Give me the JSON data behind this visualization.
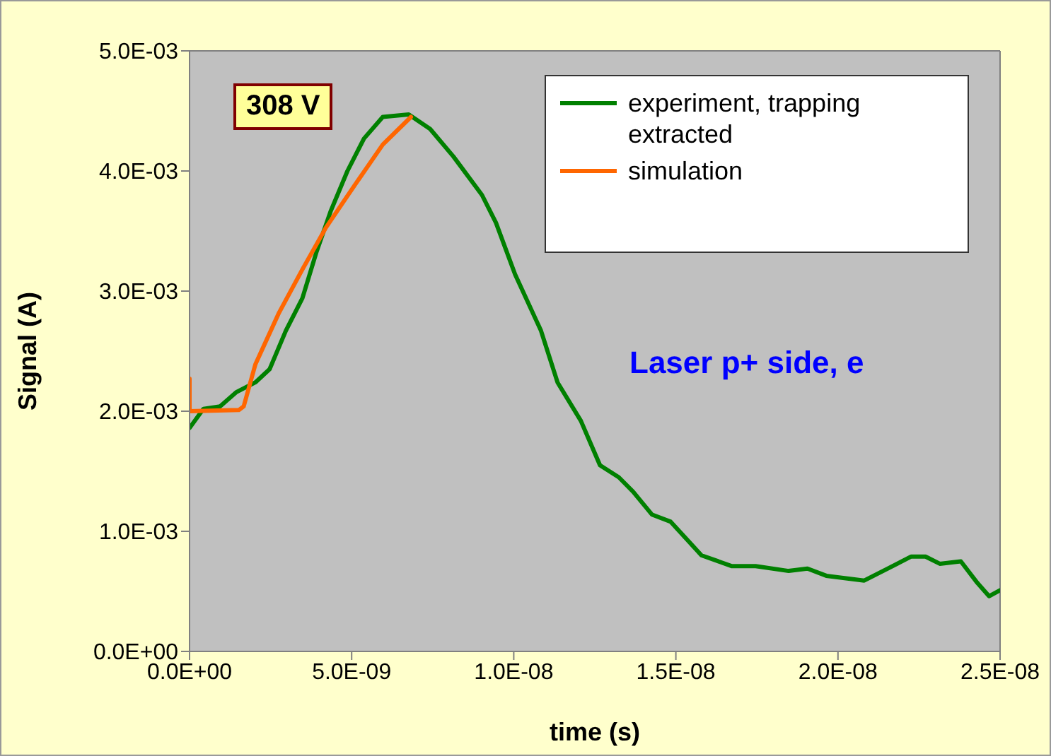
{
  "chart_data": {
    "type": "line",
    "xlabel": "time (s)",
    "ylabel": "Signal (A)",
    "xlim": [
      0,
      2.5e-08
    ],
    "xticks": [
      {
        "value": 0,
        "label": "0.0E+00"
      },
      {
        "value": 5e-09,
        "label": "5.0E-09"
      },
      {
        "value": 1e-08,
        "label": "1.0E-08"
      },
      {
        "value": 1.5e-08,
        "label": "1.5E-08"
      },
      {
        "value": 2e-08,
        "label": "2.0E-08"
      },
      {
        "value": 2.5e-08,
        "label": "2.5E-08"
      }
    ],
    "ylim": [
      0,
      0.005
    ],
    "yticks": [
      {
        "value": 0,
        "label": "0.0E+00"
      },
      {
        "value": 0.001,
        "label": "1.0E-03"
      },
      {
        "value": 0.002,
        "label": "2.0E-03"
      },
      {
        "value": 0.003,
        "label": "3.0E-03"
      },
      {
        "value": 0.004,
        "label": "4.0E-03"
      },
      {
        "value": 0.005,
        "label": "5.0E-03"
      }
    ],
    "grid": false,
    "legend": "top right",
    "marker": "none",
    "line_style": "solid",
    "annotations": [
      "308 V",
      "Laser p+ side, e"
    ],
    "series": [
      {
        "name": "experiment, trapping extracted",
        "color": "#008000",
        "x": [
          0,
          4.3e-10,
          9.4e-10,
          1.45e-09,
          2.03e-09,
          2.47e-09,
          2.97e-09,
          3.48e-09,
          3.92e-09,
          4.36e-09,
          4.87e-09,
          5.38e-09,
          5.96e-09,
          6.76e-09,
          7.42e-09,
          8.14e-09,
          9.02e-09,
          9.45e-09,
          1.004e-08,
          1.084e-08,
          1.135e-08,
          1.207e-08,
          1.266e-08,
          1.324e-08,
          1.368e-08,
          1.426e-08,
          1.484e-08,
          1.579e-08,
          1.673e-08,
          1.746e-08,
          1.848e-08,
          1.906e-08,
          1.964e-08,
          2.081e-08,
          2.154e-08,
          2.226e-08,
          2.27e-08,
          2.314e-08,
          2.379e-08,
          2.43e-08,
          2.466e-08,
          2.5e-08
        ],
        "values": [
          0.00186,
          0.00202,
          0.00204,
          0.00216,
          0.00224,
          0.00235,
          0.00267,
          0.00294,
          0.00333,
          0.00367,
          0.004,
          0.00427,
          0.00445,
          0.00447,
          0.00435,
          0.00412,
          0.0038,
          0.00357,
          0.00314,
          0.00267,
          0.00224,
          0.00192,
          0.00155,
          0.00145,
          0.00133,
          0.00114,
          0.00108,
          0.0008,
          0.00071,
          0.00071,
          0.00067,
          0.00069,
          0.00063,
          0.00059,
          0.00069,
          0.00079,
          0.00079,
          0.00073,
          0.00075,
          0.00057,
          0.00046,
          0.00051
        ]
      },
      {
        "name": "simulation",
        "color": "#ff6600",
        "x": [
          0,
          0,
          1.52e-09,
          1.67e-09,
          2.03e-09,
          2.76e-09,
          3.48e-09,
          4.21e-09,
          5.09e-09,
          5.96e-09,
          6.83e-09
        ],
        "values": [
          0.00227,
          0.002,
          0.00201,
          0.00204,
          0.00239,
          0.00282,
          0.00318,
          0.00353,
          0.00388,
          0.00422,
          0.00445
        ]
      }
    ]
  }
}
